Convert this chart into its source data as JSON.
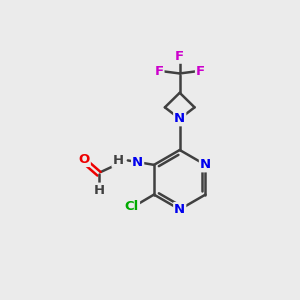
{
  "bg_color": "#ebebeb",
  "bond_color": "#404040",
  "bond_width": 1.8,
  "atom_colors": {
    "N": "#0000ee",
    "O": "#ee0000",
    "Cl": "#00aa00",
    "F": "#cc00cc",
    "C": "#404040",
    "H": "#404040"
  },
  "font_size": 9.5,
  "fig_size": [
    3.0,
    3.0
  ],
  "dpi": 100
}
